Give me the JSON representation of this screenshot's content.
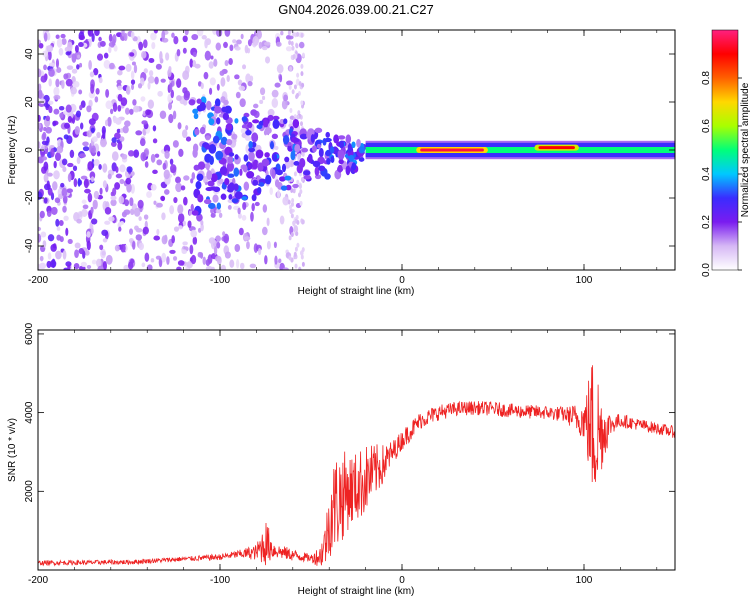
{
  "title": "GN04.2026.039.00.21.C27",
  "chart_data": [
    {
      "type": "heatmap",
      "name": "spectrogram",
      "xlabel": "Height of straight line (km)",
      "ylabel": "Frequency (Hz)",
      "xlim": [
        -200,
        150
      ],
      "ylim": [
        -50,
        50
      ],
      "xticks": [
        -200,
        -100,
        0,
        100
      ],
      "xtick_labels": [
        "-200",
        "-100",
        "0",
        "100"
      ],
      "yticks": [
        -40,
        -20,
        0,
        20,
        40
      ],
      "ytick_labels": [
        "-40",
        "-20",
        "0",
        "20",
        "40"
      ],
      "colorbar": {
        "label": "Normalized spectral amplitude",
        "range": [
          0,
          1
        ],
        "ticks": [
          0.0,
          0.2,
          0.4,
          0.6,
          0.8
        ],
        "tick_labels": [
          "0.0",
          "0.2",
          "0.4",
          "0.6",
          "0.8"
        ],
        "colormap": [
          "#ffffff",
          "#d6b8f5",
          "#7a1cf0",
          "#3a2cff",
          "#00c8ff",
          "#00ff7a",
          "#a8ff00",
          "#ffd800",
          "#ff6000",
          "#ff0000",
          "#ff2080"
        ]
      },
      "features": [
        {
          "description": "broad low-amplitude noise",
          "x_range": [
            -200,
            -55
          ],
          "freq_range": [
            -50,
            50
          ],
          "amplitude": 0.1
        },
        {
          "description": "scattered speckle",
          "x_range": [
            -115,
            -20
          ],
          "freq_range": [
            -25,
            15
          ],
          "amplitude": 0.3
        },
        {
          "description": "carrier tone band",
          "x_range": [
            -20,
            150
          ],
          "freq_center": 0,
          "freq_halfwidth": 3,
          "amplitude": 0.5
        },
        {
          "description": "peak region",
          "x_range": [
            10,
            45
          ],
          "freq_center": 0,
          "amplitude": 0.95
        },
        {
          "description": "peak region",
          "x_range": [
            75,
            95
          ],
          "freq_center": 1,
          "amplitude": 0.9
        }
      ]
    },
    {
      "type": "line",
      "name": "snr",
      "xlabel": "Height of straight line (km)",
      "ylabel": "SNR (10 * v/v)",
      "xlim": [
        -200,
        150
      ],
      "ylim": [
        0,
        6100
      ],
      "xticks": [
        -200,
        -100,
        0,
        100
      ],
      "xtick_labels": [
        "-200",
        "-100",
        "0",
        "100"
      ],
      "yticks": [
        2000,
        4000,
        6000
      ],
      "ytick_labels": [
        "2000",
        "4000",
        "6000"
      ],
      "color": "#ee2222",
      "series": [
        {
          "name": "SNR envelope",
          "x": [
            -200,
            -150,
            -120,
            -100,
            -90,
            -80,
            -75,
            -70,
            -60,
            -50,
            -45,
            -42,
            -40,
            -38,
            -35,
            -30,
            -25,
            -20,
            -15,
            -10,
            -5,
            0,
            5,
            10,
            20,
            30,
            40,
            50,
            60,
            70,
            80,
            90,
            100,
            103,
            105,
            108,
            110,
            115,
            120,
            130,
            140,
            150
          ],
          "y": [
            180,
            200,
            280,
            330,
            400,
            450,
            700,
            500,
            380,
            300,
            350,
            700,
            1200,
            1600,
            1800,
            2000,
            2100,
            2300,
            2500,
            2700,
            3000,
            3300,
            3550,
            3800,
            4000,
            4100,
            4120,
            4100,
            4050,
            4020,
            4000,
            3950,
            3800,
            3700,
            3600,
            3500,
            3500,
            3700,
            3800,
            3700,
            3600,
            3500
          ],
          "noise": [
            60,
            60,
            60,
            80,
            100,
            200,
            600,
            200,
            150,
            100,
            300,
            600,
            900,
            1200,
            1300,
            1000,
            900,
            900,
            700,
            500,
            300,
            250,
            250,
            220,
            200,
            180,
            180,
            180,
            180,
            180,
            180,
            200,
            500,
            1400,
            2000,
            1600,
            900,
            250,
            180,
            150,
            150,
            150
          ]
        }
      ]
    }
  ]
}
